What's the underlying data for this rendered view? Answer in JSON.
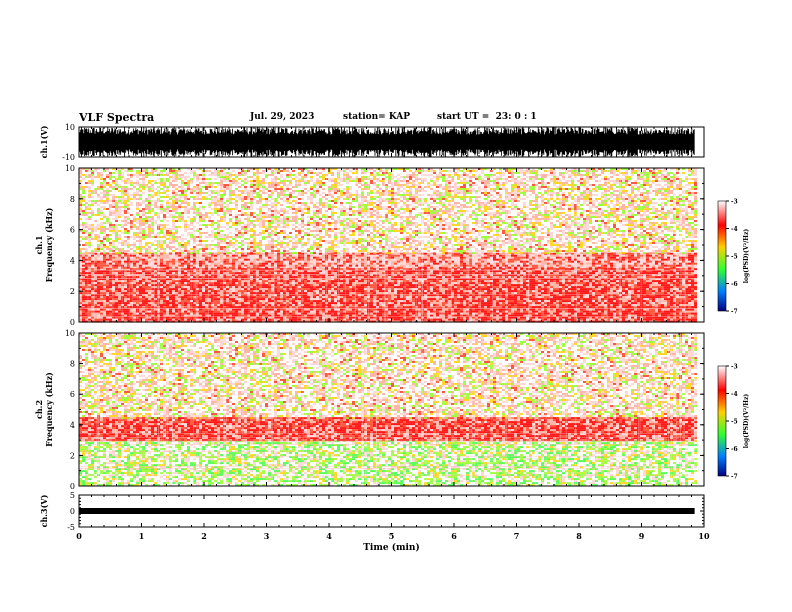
{
  "header": {
    "title": "VLF Spectra",
    "date": "Jul. 29, 2023",
    "station": "station= KAP",
    "start": "start UT =  23: 0 : 1"
  },
  "colors": {
    "background": "#ffffff",
    "ink": "#000000",
    "noise_red": "#ff0000",
    "noise_yellow": "#ffd000",
    "noise_green": "#30ff30"
  },
  "colorbar": {
    "label": "log(PSD)(V²/Hz)",
    "ticks": [
      "-3",
      "-4",
      "-5",
      "-6",
      "-7"
    ]
  },
  "chart_data": [
    {
      "type": "line",
      "panel": "ch1_waveform",
      "ylabel": "ch.1(V)",
      "ylim": [
        -10,
        10
      ],
      "yticks": [
        "10",
        "-10"
      ],
      "xlim": [
        0,
        10
      ],
      "note_x_extent_min": 9.85
    },
    {
      "type": "heatmap",
      "panel": "ch1_spectrogram",
      "ylabel": "ch.1\nFrequency (kHz)",
      "ylim": [
        0,
        10
      ],
      "yticks": [
        "0",
        "2",
        "4",
        "6",
        "8",
        "10"
      ],
      "xlim": [
        0,
        10
      ],
      "data_end_min": 9.85,
      "bands": [
        {
          "fmin": 0.0,
          "fmax": 1.0,
          "level": -4.0
        },
        {
          "fmin": 1.0,
          "fmax": 3.5,
          "level": -4.0
        },
        {
          "fmin": 3.5,
          "fmax": 4.5,
          "level": -4.3
        },
        {
          "fmin": 4.5,
          "fmax": 10.0,
          "level": -4.7
        }
      ]
    },
    {
      "type": "heatmap",
      "panel": "ch2_spectrogram",
      "ylabel": "ch.2\nFrequency (kHz)",
      "ylim": [
        0,
        10
      ],
      "yticks": [
        "0",
        "2",
        "4",
        "6",
        "8",
        "10"
      ],
      "xlim": [
        0,
        10
      ],
      "data_end_min": 9.85,
      "bands": [
        {
          "fmin": 0.0,
          "fmax": 3.0,
          "level": -5.2
        },
        {
          "fmin": 3.0,
          "fmax": 4.5,
          "level": -4.0
        },
        {
          "fmin": 4.5,
          "fmax": 10.0,
          "level": -4.7
        }
      ]
    },
    {
      "type": "line",
      "panel": "ch3_waveform",
      "ylabel": "ch.3(V)",
      "ylim": [
        -5,
        5
      ],
      "yticks": [
        "5",
        "0",
        "-5"
      ],
      "xlim": [
        0,
        10
      ],
      "baseline_v": 0.0,
      "amplitude_v": 0.3
    }
  ],
  "xaxis": {
    "label": "Time (min)",
    "ticks": [
      "0",
      "1",
      "2",
      "3",
      "4",
      "5",
      "6",
      "7",
      "8",
      "9",
      "10"
    ]
  }
}
